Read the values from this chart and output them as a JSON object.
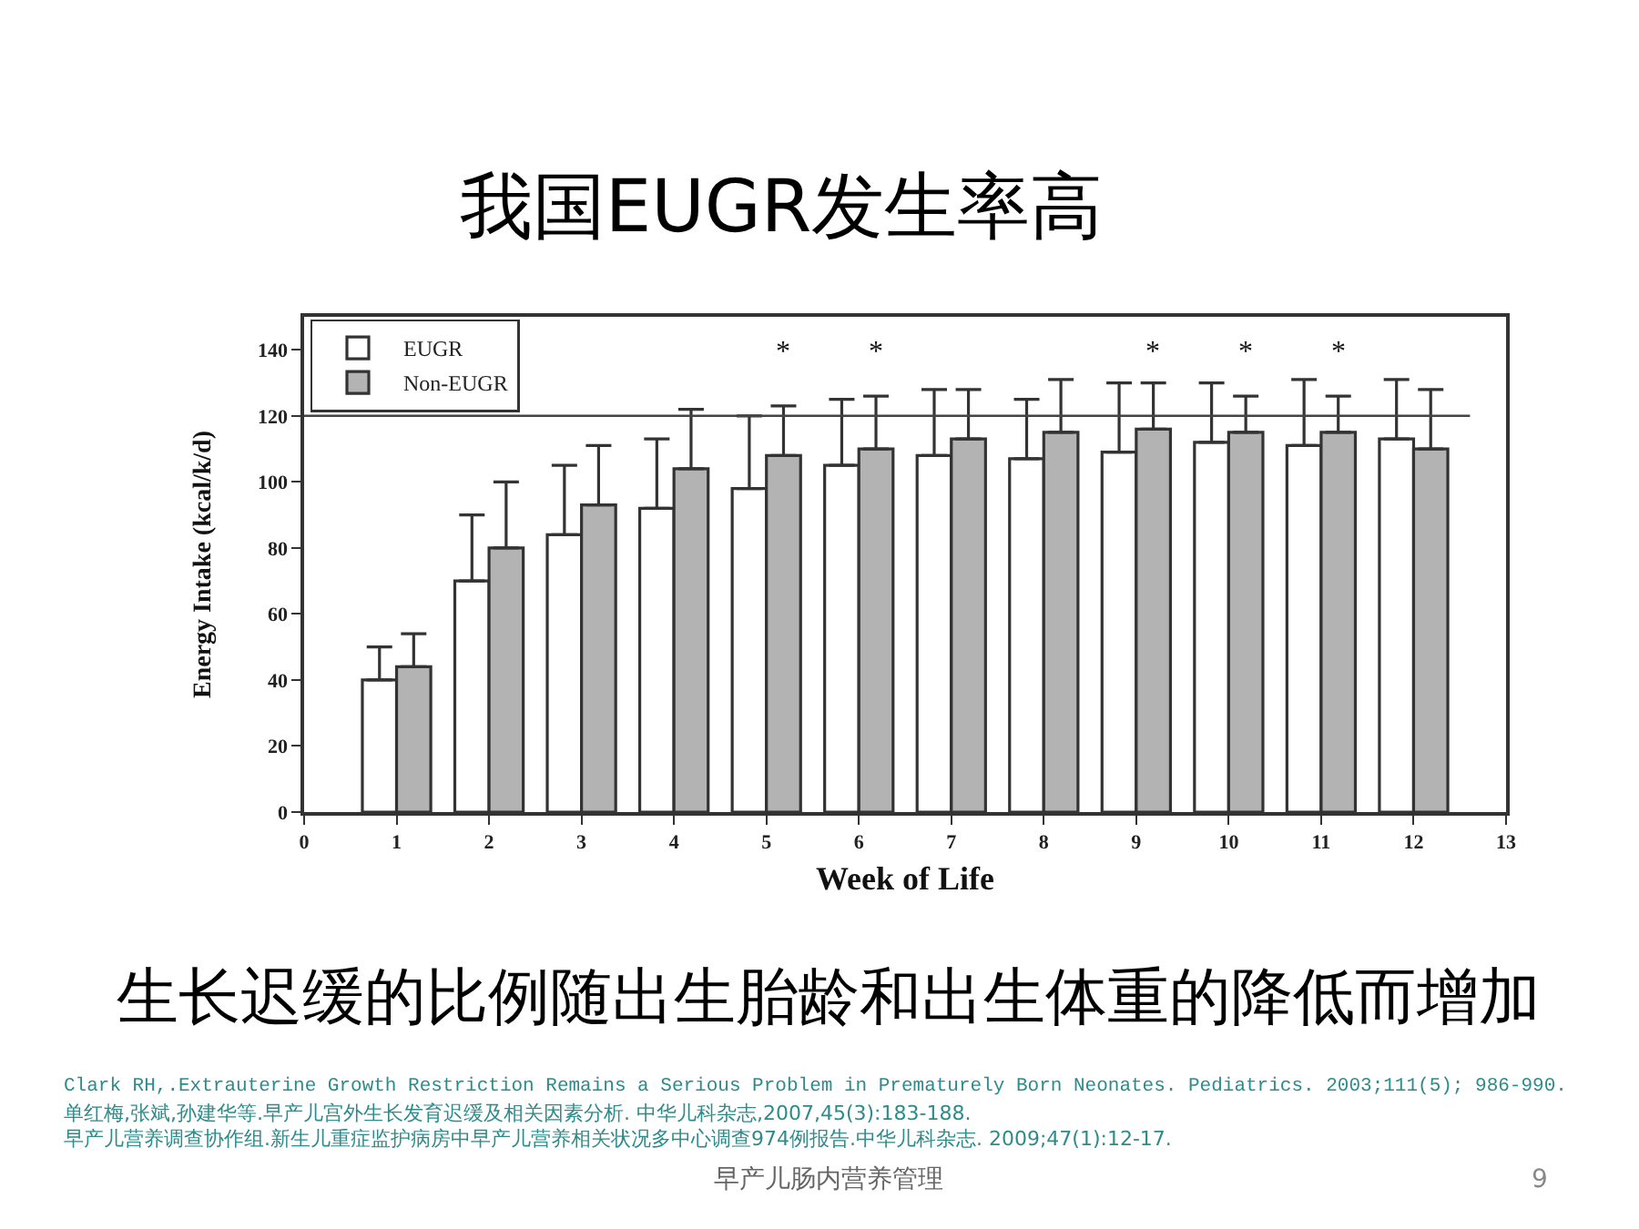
{
  "chart_data": {
    "type": "bar",
    "title": "我国EUGR发生率高",
    "xlabel": "Week of Life",
    "ylabel": "Energy Intake (kcal/k/d)",
    "x": [
      1,
      2,
      3,
      4,
      5,
      6,
      7,
      8,
      9,
      10,
      11,
      12
    ],
    "series": [
      {
        "name": "EUGR",
        "color": "#ffffff",
        "values": [
          40,
          70,
          84,
          92,
          98,
          105,
          108,
          107,
          109,
          112,
          111,
          113
        ],
        "errors": [
          [
            40,
            50
          ],
          [
            70,
            90
          ],
          [
            84,
            105
          ],
          [
            92,
            113
          ],
          [
            98,
            120
          ],
          [
            105,
            125
          ],
          [
            108,
            128
          ],
          [
            107,
            125
          ],
          [
            109,
            130
          ],
          [
            112,
            130
          ],
          [
            111,
            131
          ],
          [
            113,
            131
          ]
        ]
      },
      {
        "name": "Non-EUGR",
        "color": "#b3b3b3",
        "values": [
          44,
          80,
          93,
          104,
          108,
          110,
          113,
          115,
          116,
          115,
          115,
          110
        ],
        "errors": [
          [
            44,
            54
          ],
          [
            80,
            100
          ],
          [
            93,
            111
          ],
          [
            104,
            122
          ],
          [
            108,
            123
          ],
          [
            110,
            126
          ],
          [
            113,
            128
          ],
          [
            115,
            131
          ],
          [
            116,
            130
          ],
          [
            115,
            126
          ],
          [
            115,
            126
          ],
          [
            110,
            128
          ]
        ],
        "value_labels": [
          null,
          null,
          null,
          null,
          "*",
          "*",
          null,
          null,
          "*",
          "*",
          "*",
          null
        ]
      }
    ],
    "xlim": [
      0,
      13
    ],
    "xticks": [
      0,
      1,
      2,
      3,
      4,
      5,
      6,
      7,
      8,
      9,
      10,
      11,
      12,
      13
    ],
    "ylim": [
      0,
      150
    ],
    "yticks": [
      0,
      20,
      40,
      60,
      80,
      100,
      120,
      140
    ],
    "ref_lines": [
      {
        "axis": "y",
        "value": 120,
        "color": "#444444"
      }
    ],
    "legend": "top left",
    "grid": false,
    "annotations": [
      "生长迟缓的比例随出生胎龄和出生体重的降低而增加",
      "Clark RH,.Extrauterine Growth Restriction Remains a Serious Problem in Prematurely Born Neonates. Pediatrics. 2003;111(5); 986-990.",
      "单红梅,张斌,孙建华等.早产儿宫外生长发育迟缓及相关因素分析. 中华儿科杂志,2007,45(3):183-188.",
      "早产儿营养调查协作组.新生儿重症监护病房中早产儿营养相关状况多中心调查974例报告.中华儿科杂志. 2009;47(1):12-17.",
      "早产儿肠内营养管理",
      "9"
    ]
  }
}
